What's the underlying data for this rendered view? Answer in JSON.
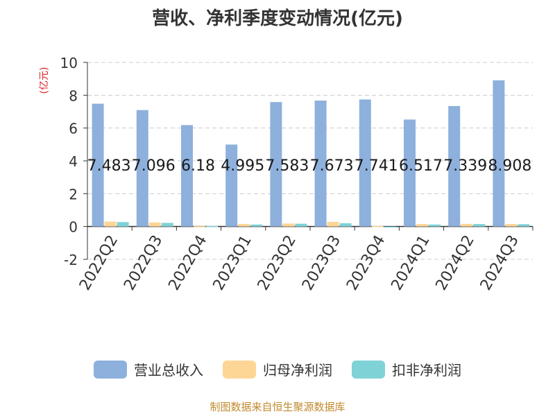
{
  "chart_data": {
    "type": "bar",
    "title": "营收、净利季度变动情况(亿元)",
    "ylabel": "(亿元)",
    "ylim": [
      -2,
      10
    ],
    "yticks": [
      -2,
      0,
      2,
      4,
      6,
      8,
      10
    ],
    "grid": true,
    "legend_position": "bottom",
    "categories": [
      "2022Q2",
      "2022Q3",
      "2022Q4",
      "2023Q1",
      "2023Q2",
      "2023Q3",
      "2023Q4",
      "2024Q1",
      "2024Q2",
      "2024Q3"
    ],
    "series": [
      {
        "name": "营业总收入",
        "color": "#8eb0dc",
        "values": [
          7.483,
          7.096,
          6.18,
          4.995,
          7.583,
          7.673,
          7.741,
          6.517,
          7.339,
          8.908
        ],
        "labels": [
          "7.483",
          "7.096",
          "6.18",
          "4.995",
          "7.583",
          "7.673",
          "7.741",
          "6.517",
          "7.339",
          "8.908"
        ]
      },
      {
        "name": "归母净利润",
        "color": "#fdd696",
        "values": [
          0.3,
          0.25,
          0.02,
          0.15,
          0.18,
          0.28,
          0.03,
          0.15,
          0.16,
          0.15
        ]
      },
      {
        "name": "扣非净利润",
        "color": "#7fd3d7",
        "values": [
          0.27,
          0.22,
          0.03,
          0.12,
          0.17,
          0.2,
          -0.03,
          0.12,
          0.15,
          0.14
        ]
      }
    ],
    "source": "制图数据来自恒生聚源数据库"
  }
}
